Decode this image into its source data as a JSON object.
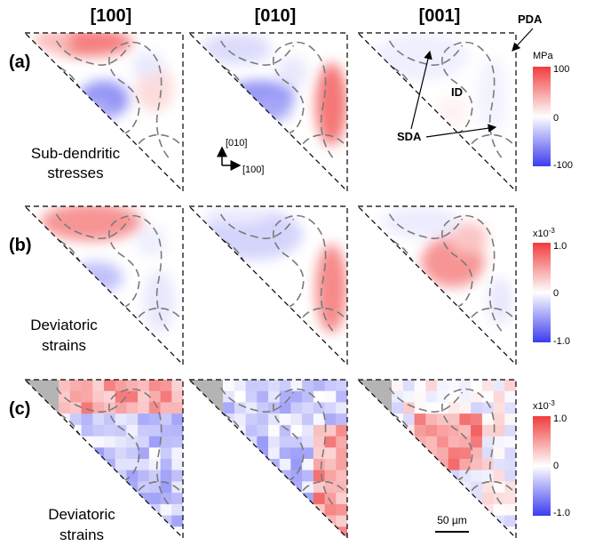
{
  "columns": [
    "[100]",
    "[010]",
    "[001]"
  ],
  "rows": [
    {
      "label": "(a)",
      "caption_lines": [
        "Sub-dendritic",
        "stresses"
      ]
    },
    {
      "label": "(b)",
      "caption_lines": [
        "Deviatoric",
        "strains"
      ]
    },
    {
      "label": "(c)",
      "caption_lines": [
        "Deviatoric",
        "strains"
      ]
    }
  ],
  "colorbars": [
    {
      "unit": "MPa",
      "max": "100",
      "mid": "0",
      "min": "-100"
    },
    {
      "unit": "x10",
      "unit_exp": "-3",
      "max": "1.0",
      "mid": "0",
      "min": "-1.0"
    },
    {
      "unit": "x10",
      "unit_exp": "-3",
      "max": "1.0",
      "mid": "0",
      "min": "-1.0"
    }
  ],
  "annotations": {
    "pda": "PDA",
    "id": "ID",
    "sda": "SDA"
  },
  "axes_indicator": {
    "vertical": "[010]",
    "horizontal": "[100]"
  },
  "scale_bar": {
    "label": "50 µm"
  },
  "colors": {
    "positive": "#f03c3c",
    "negative": "#3c3cf0",
    "neutral": "#ffffff",
    "outline": "#000000",
    "contour": "#7a7a7a",
    "missing": "#b4b4b4"
  }
}
